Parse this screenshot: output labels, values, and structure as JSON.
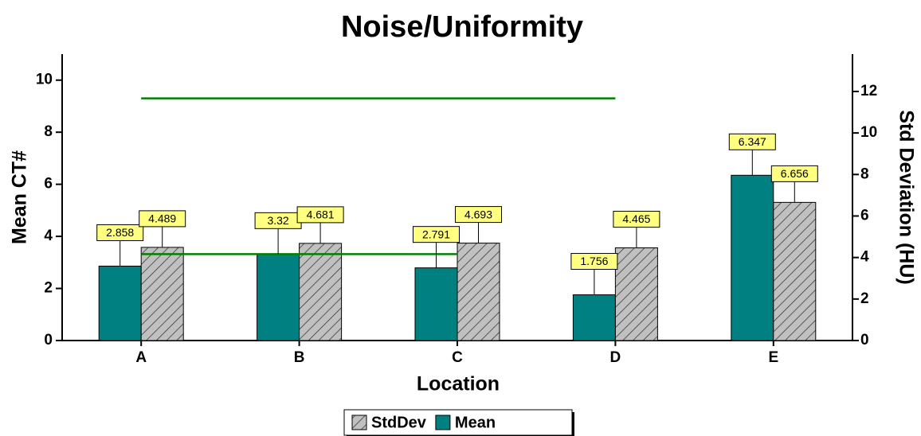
{
  "chart_data": {
    "type": "bar",
    "title": "Noise/Uniformity",
    "x_label": "Location",
    "y_label": "Mean CT#",
    "y2_label": "Std Deviation (HU)",
    "categories": [
      "A",
      "B",
      "C",
      "D",
      "E"
    ],
    "series": [
      {
        "name": "Mean",
        "color": "#008080",
        "values": [
          2.858,
          3.32,
          2.791,
          1.756,
          6.347
        ]
      },
      {
        "name": "StdDev",
        "color": "#c0c0c0",
        "hatch": true,
        "axis": "y2",
        "values": [
          4.489,
          4.681,
          4.693,
          4.465,
          6.656
        ]
      }
    ],
    "reference_lines": [
      {
        "color": "#008000",
        "axis": "y",
        "values": [
          9.3,
          9.3,
          9.3,
          9.3,
          null
        ]
      },
      {
        "color": "#008000",
        "axis": "y",
        "values": [
          3.32,
          3.32,
          3.32,
          null,
          null
        ]
      }
    ],
    "ylim": [
      0,
      11
    ],
    "yticks": [
      0,
      2,
      4,
      6,
      8,
      10
    ],
    "y2lim": [
      0,
      13.8
    ],
    "y2ticks": [
      0,
      2,
      4,
      6,
      8,
      10,
      12
    ],
    "legend": "bottom",
    "label_color": "#ffff80"
  }
}
